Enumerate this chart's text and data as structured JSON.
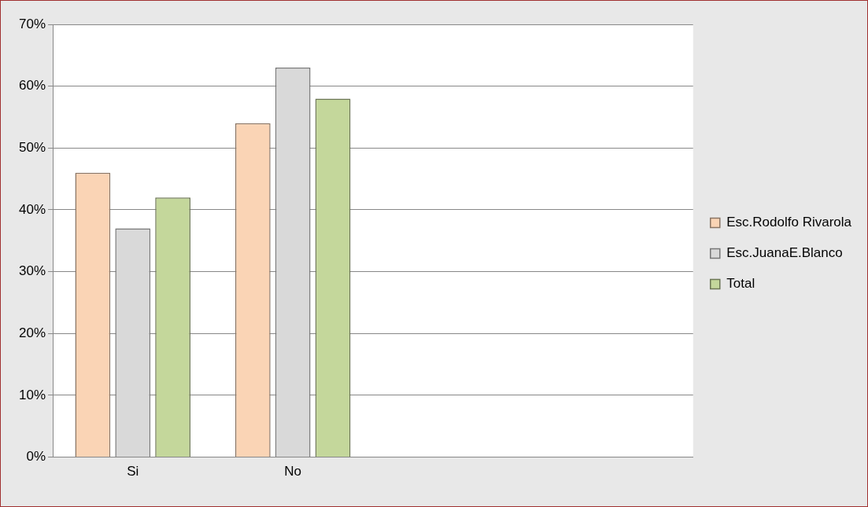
{
  "chart_data": {
    "type": "bar",
    "categories": [
      "Si",
      "No",
      null,
      null
    ],
    "series": [
      {
        "name": "Esc.Rodolfo Rivarola",
        "color": "#fad4b5",
        "values": [
          46,
          54,
          null,
          null
        ]
      },
      {
        "name": "Esc.JuanaE.Blanco",
        "color": "#d9d9d9",
        "values": [
          37,
          63,
          null,
          null
        ]
      },
      {
        "name": "Total",
        "color": "#c4d79b",
        "values": [
          42,
          58,
          null,
          null
        ]
      }
    ],
    "ylim": [
      0,
      70
    ],
    "yticks": [
      {
        "value": 0,
        "label": "0%"
      },
      {
        "value": 10,
        "label": "10%"
      },
      {
        "value": 20,
        "label": "20%"
      },
      {
        "value": 30,
        "label": "30%"
      },
      {
        "value": 40,
        "label": "40%"
      },
      {
        "value": 50,
        "label": "50%"
      },
      {
        "value": 60,
        "label": "60%"
      },
      {
        "value": 70,
        "label": "70%"
      }
    ],
    "grid": "y",
    "legend": "right"
  }
}
